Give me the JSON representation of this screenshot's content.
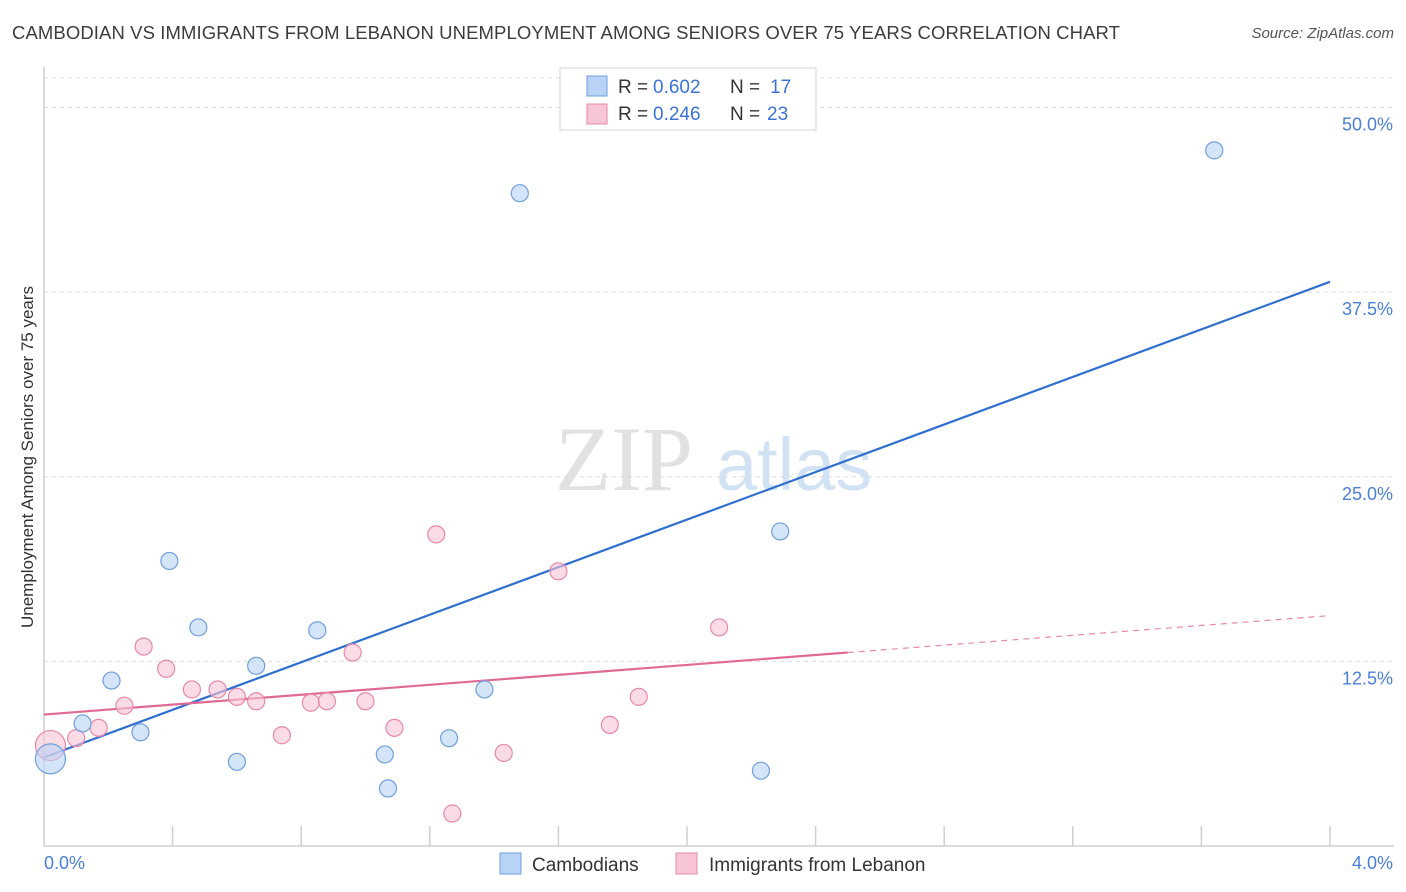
{
  "title": "CAMBODIAN VS IMMIGRANTS FROM LEBANON UNEMPLOYMENT AMONG SENIORS OVER 75 YEARS CORRELATION CHART",
  "source": "Source: ZipAtlas.com",
  "colors": {
    "blue_fill": "#b8d3f5",
    "blue_stroke": "#6f9fdf",
    "blue_line": "#2f6fd0",
    "pink_fill": "#f8c5d5",
    "pink_stroke": "#e888a8",
    "pink_line": "#e06a95",
    "grid": "#dcdcdc",
    "tick_label": "#4a7fd6"
  },
  "chart_data": {
    "type": "scatter",
    "title": "CAMBODIAN VS IMMIGRANTS FROM LEBANON UNEMPLOYMENT AMONG SENIORS OVER 75 YEARS CORRELATION CHART",
    "xlabel": "",
    "ylabel": "Unemployment Among Seniors over 75 years",
    "xlim": [
      0,
      4.0
    ],
    "ylim": [
      0,
      52
    ],
    "x_tick_labels": [
      "0.0%",
      "4.0%"
    ],
    "y_ticks": [
      12.5,
      25.0,
      37.5,
      50.0
    ],
    "y_tick_labels": [
      "12.5%",
      "25.0%",
      "37.5%",
      "50.0%"
    ],
    "watermark": "ZIPatlas",
    "series": [
      {
        "name": "Cambodians",
        "color": "blue",
        "R": "0.602",
        "N": "17",
        "points": [
          {
            "x": 0.02,
            "y": 5.9,
            "big": true
          },
          {
            "x": 0.12,
            "y": 8.3
          },
          {
            "x": 0.21,
            "y": 11.2
          },
          {
            "x": 0.3,
            "y": 7.7
          },
          {
            "x": 0.39,
            "y": 19.3
          },
          {
            "x": 0.48,
            "y": 14.8
          },
          {
            "x": 0.6,
            "y": 5.7
          },
          {
            "x": 0.66,
            "y": 12.2
          },
          {
            "x": 0.85,
            "y": 14.6
          },
          {
            "x": 1.07,
            "y": 3.9
          },
          {
            "x": 1.06,
            "y": 6.2
          },
          {
            "x": 1.26,
            "y": 7.3
          },
          {
            "x": 1.37,
            "y": 10.6
          },
          {
            "x": 1.48,
            "y": 44.2
          },
          {
            "x": 2.23,
            "y": 5.1
          },
          {
            "x": 2.29,
            "y": 21.3
          },
          {
            "x": 3.64,
            "y": 47.1
          }
        ],
        "trend": {
          "x0": 0.0,
          "y0": 6.0,
          "x1": 4.0,
          "y1": 38.2
        }
      },
      {
        "name": "Immigrants from Lebanon",
        "color": "pink",
        "R": "0.246",
        "N": "23",
        "points": [
          {
            "x": 0.02,
            "y": 6.8,
            "big": true
          },
          {
            "x": 0.1,
            "y": 7.3
          },
          {
            "x": 0.17,
            "y": 8.0
          },
          {
            "x": 0.25,
            "y": 9.5
          },
          {
            "x": 0.31,
            "y": 13.5
          },
          {
            "x": 0.38,
            "y": 12.0
          },
          {
            "x": 0.46,
            "y": 10.6
          },
          {
            "x": 0.54,
            "y": 10.6
          },
          {
            "x": 0.6,
            "y": 10.1
          },
          {
            "x": 0.66,
            "y": 9.8
          },
          {
            "x": 0.74,
            "y": 7.5
          },
          {
            "x": 0.83,
            "y": 9.7
          },
          {
            "x": 0.88,
            "y": 9.8
          },
          {
            "x": 0.96,
            "y": 13.1
          },
          {
            "x": 1.0,
            "y": 9.8
          },
          {
            "x": 1.09,
            "y": 8.0
          },
          {
            "x": 1.22,
            "y": 21.1
          },
          {
            "x": 1.27,
            "y": 2.2
          },
          {
            "x": 1.43,
            "y": 6.3
          },
          {
            "x": 1.6,
            "y": 18.6
          },
          {
            "x": 1.76,
            "y": 8.2
          },
          {
            "x": 1.85,
            "y": 10.1
          },
          {
            "x": 2.1,
            "y": 14.8
          }
        ],
        "trend": {
          "x0": 0.0,
          "y0": 8.9,
          "x1": 2.5,
          "y1": 13.1
        },
        "trend_dashed": {
          "x0": 2.5,
          "y0": 13.1,
          "x1": 4.0,
          "y1": 15.6
        }
      }
    ]
  },
  "legend": {
    "r_label": "R =",
    "n_label": "N =",
    "blue_r": "0.602",
    "blue_n": "17",
    "pink_r": "0.246",
    "pink_n": "23"
  },
  "bottom_legend": {
    "blue": "Cambodians",
    "pink": "Immigrants from Lebanon"
  }
}
